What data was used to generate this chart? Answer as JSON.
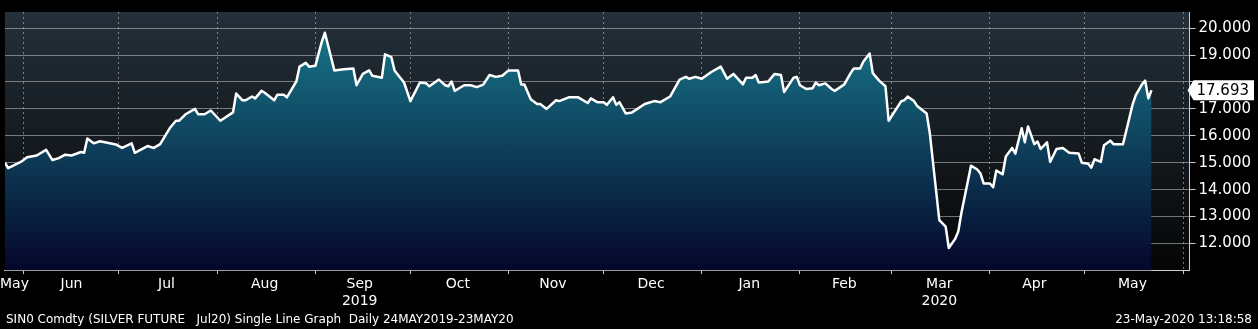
{
  "chart_data": {
    "type": "area",
    "x": [
      "2019-05-26",
      "2019-05-27",
      "2019-05-31",
      "2019-06-02",
      "2019-06-05",
      "2019-06-08",
      "2019-06-10",
      "2019-06-12",
      "2019-06-14",
      "2019-06-16",
      "2019-06-19",
      "2019-06-20",
      "2019-06-21",
      "2019-06-23",
      "2019-06-25",
      "2019-06-30",
      "2019-07-02",
      "2019-07-05",
      "2019-07-06",
      "2019-07-10",
      "2019-07-12",
      "2019-07-14",
      "2019-07-17",
      "2019-07-19",
      "2019-07-20",
      "2019-07-22",
      "2019-07-25",
      "2019-07-26",
      "2019-07-28",
      "2019-07-30",
      "2019-08-02",
      "2019-08-06",
      "2019-08-07",
      "2019-08-09",
      "2019-08-10",
      "2019-08-12",
      "2019-08-13",
      "2019-08-15",
      "2019-08-16",
      "2019-08-19",
      "2019-08-20",
      "2019-08-22",
      "2019-08-23",
      "2019-08-26",
      "2019-08-27",
      "2019-08-29",
      "2019-08-30",
      "2019-09-01",
      "2019-09-03",
      "2019-09-04",
      "2019-09-07",
      "2019-09-10",
      "2019-09-13",
      "2019-09-14",
      "2019-09-16",
      "2019-09-18",
      "2019-09-19",
      "2019-09-22",
      "2019-09-23",
      "2019-09-25",
      "2019-09-26",
      "2019-09-29",
      "2019-10-01",
      "2019-10-04",
      "2019-10-06",
      "2019-10-07",
      "2019-10-10",
      "2019-10-12",
      "2019-10-13",
      "2019-10-14",
      "2019-10-15",
      "2019-10-16",
      "2019-10-18",
      "2019-10-20",
      "2019-10-22",
      "2019-10-24",
      "2019-10-26",
      "2019-10-28",
      "2019-10-30",
      "2019-11-01",
      "2019-11-04",
      "2019-11-05",
      "2019-11-06",
      "2019-11-08",
      "2019-11-10",
      "2019-11-11",
      "2019-11-13",
      "2019-11-16",
      "2019-11-17",
      "2019-11-20",
      "2019-11-23",
      "2019-11-26",
      "2019-11-27",
      "2019-11-29",
      "2019-12-01",
      "2019-12-02",
      "2019-12-04",
      "2019-12-05",
      "2019-12-06",
      "2019-12-08",
      "2019-12-10",
      "2019-12-14",
      "2019-12-17",
      "2019-12-19",
      "2019-12-22",
      "2019-12-25",
      "2019-12-27",
      "2019-12-28",
      "2019-12-30",
      "2020-01-01",
      "2020-01-04",
      "2020-01-07",
      "2020-01-09",
      "2020-01-11",
      "2020-01-14",
      "2020-01-15",
      "2020-01-17",
      "2020-01-18",
      "2020-01-19",
      "2020-01-22",
      "2020-01-24",
      "2020-01-26",
      "2020-01-27",
      "2020-01-30",
      "2020-01-31",
      "2020-02-01",
      "2020-02-03",
      "2020-02-05",
      "2020-02-06",
      "2020-02-07",
      "2020-02-09",
      "2020-02-11",
      "2020-02-12",
      "2020-02-15",
      "2020-02-17",
      "2020-02-18",
      "2020-02-20",
      "2020-02-21",
      "2020-02-23",
      "2020-02-24",
      "2020-02-26",
      "2020-02-28",
      "2020-02-29",
      "2020-03-04",
      "2020-03-05",
      "2020-03-06",
      "2020-03-08",
      "2020-03-09",
      "2020-03-12",
      "2020-03-13",
      "2020-03-16",
      "2020-03-18",
      "2020-03-19",
      "2020-03-21",
      "2020-03-22",
      "2020-03-23",
      "2020-03-25",
      "2020-03-26",
      "2020-03-28",
      "2020-03-29",
      "2020-03-30",
      "2020-04-01",
      "2020-04-02",
      "2020-04-03",
      "2020-04-05",
      "2020-04-06",
      "2020-04-08",
      "2020-04-09",
      "2020-04-11",
      "2020-04-12",
      "2020-04-13",
      "2020-04-15",
      "2020-04-16",
      "2020-04-17",
      "2020-04-19",
      "2020-04-20",
      "2020-04-22",
      "2020-04-24",
      "2020-04-26",
      "2020-04-29",
      "2020-04-30",
      "2020-05-02",
      "2020-05-03",
      "2020-05-04",
      "2020-05-06",
      "2020-05-07",
      "2020-05-09",
      "2020-05-10",
      "2020-05-13",
      "2020-05-14",
      "2020-05-16",
      "2020-05-17",
      "2020-05-19",
      "2020-05-20",
      "2020-05-21",
      "2020-05-22"
    ],
    "series": [
      {
        "color": "#ffffff",
        "values": [
          15.0,
          14.8,
          15.03,
          15.2,
          15.27,
          15.48,
          15.1,
          15.17,
          15.3,
          15.27,
          15.4,
          15.37,
          15.9,
          15.72,
          15.8,
          15.68,
          15.55,
          15.72,
          15.37,
          15.62,
          15.55,
          15.69,
          16.28,
          16.56,
          16.56,
          16.8,
          17.0,
          16.8,
          16.8,
          16.94,
          16.56,
          16.87,
          17.57,
          17.32,
          17.32,
          17.46,
          17.39,
          17.67,
          17.6,
          17.32,
          17.53,
          17.53,
          17.43,
          18.02,
          18.57,
          18.71,
          18.57,
          18.6,
          19.48,
          19.83,
          18.43,
          18.47,
          18.5,
          17.88,
          18.3,
          18.43,
          18.23,
          18.16,
          19.03,
          18.92,
          18.43,
          17.98,
          17.29,
          17.98,
          17.95,
          17.84,
          18.09,
          17.88,
          17.84,
          18.02,
          17.67,
          17.74,
          17.88,
          17.88,
          17.81,
          17.9,
          18.26,
          18.19,
          18.23,
          18.43,
          18.43,
          17.91,
          17.91,
          17.36,
          17.18,
          17.18,
          17.0,
          17.32,
          17.29,
          17.43,
          17.43,
          17.22,
          17.39,
          17.25,
          17.25,
          17.15,
          17.43,
          17.15,
          17.25,
          16.83,
          16.87,
          17.18,
          17.29,
          17.25,
          17.46,
          18.09,
          18.19,
          18.12,
          18.19,
          18.12,
          18.37,
          18.57,
          18.12,
          18.3,
          17.91,
          18.16,
          18.16,
          18.26,
          17.98,
          18.02,
          18.3,
          18.26,
          17.63,
          18.16,
          18.19,
          17.88,
          17.74,
          17.77,
          17.98,
          17.88,
          17.95,
          17.74,
          17.67,
          17.91,
          18.33,
          18.5,
          18.5,
          18.75,
          19.06,
          18.33,
          18.05,
          17.84,
          16.56,
          17.29,
          17.32,
          17.46,
          17.29,
          17.11,
          16.83,
          16.1,
          12.87,
          12.63,
          11.83,
          12.17,
          12.45,
          13.15,
          14.3,
          14.89,
          14.75,
          14.6,
          14.23,
          14.23,
          14.09,
          14.71,
          14.57,
          15.23,
          15.55,
          15.34,
          16.28,
          15.76,
          16.35,
          15.69,
          15.79,
          15.51,
          15.76,
          15.03,
          15.51,
          15.55,
          15.37,
          15.34,
          15.0,
          14.96,
          14.82,
          15.13,
          15.03,
          15.65,
          15.82,
          15.69,
          15.69,
          16.17,
          17.15,
          17.5,
          17.91,
          18.05,
          17.39,
          17.693
        ]
      }
    ],
    "xlim": [
      "2019-05-26",
      "2020-06-03"
    ],
    "xticks": [
      {
        "value": "2019-05-29",
        "label": "May"
      },
      {
        "value": "2019-06-01",
        "label": null
      },
      {
        "value": "2019-06-16",
        "label": "Jun"
      },
      {
        "value": "2019-07-01",
        "label": null
      },
      {
        "value": "2019-07-16",
        "label": "Jul"
      },
      {
        "value": "2019-08-01",
        "label": null
      },
      {
        "value": "2019-08-16",
        "label": "Aug"
      },
      {
        "value": "2019-09-01",
        "label": null
      },
      {
        "value": "2019-09-15",
        "label": "Sep\n2019"
      },
      {
        "value": "2019-10-01",
        "label": null
      },
      {
        "value": "2019-10-16",
        "label": "Oct"
      },
      {
        "value": "2019-11-01",
        "label": null
      },
      {
        "value": "2019-11-15",
        "label": "Nov"
      },
      {
        "value": "2019-12-01",
        "label": null
      },
      {
        "value": "2019-12-16",
        "label": "Dec"
      },
      {
        "value": "2020-01-01",
        "label": null
      },
      {
        "value": "2020-01-16",
        "label": "Jan"
      },
      {
        "value": "2020-02-01",
        "label": null
      },
      {
        "value": "2020-02-15",
        "label": "Feb"
      },
      {
        "value": "2020-03-01",
        "label": null
      },
      {
        "value": "2020-03-16",
        "label": "Mar\n2020"
      },
      {
        "value": "2020-04-01",
        "label": null
      },
      {
        "value": "2020-04-15",
        "label": "Apr"
      },
      {
        "value": "2020-05-01",
        "label": null
      },
      {
        "value": "2020-05-16",
        "label": "May"
      },
      {
        "value": "2020-06-01",
        "label": null
      }
    ],
    "ylim": [
      11,
      20.6
    ],
    "yticks": [
      {
        "value": 12,
        "label": "12.000"
      },
      {
        "value": 13,
        "label": "13.000"
      },
      {
        "value": 14,
        "label": "14.000"
      },
      {
        "value": 15,
        "label": "15.000"
      },
      {
        "value": 16,
        "label": "16.000"
      },
      {
        "value": 17,
        "label": "17.000"
      },
      {
        "value": 18,
        "label": null
      },
      {
        "value": 19,
        "label": "19.000"
      },
      {
        "value": 20,
        "label": "20.000"
      }
    ],
    "grid": true,
    "annotations": [
      {
        "text": "17.693",
        "x": "2020-05-22",
        "y": 17.693
      },
      "SIN0 Comdty (SILVER FUTURE   Jul20) Single Line Graph  Daily 24MAY2019-23MAY20",
      "23-May-2020 13:18:58"
    ]
  }
}
